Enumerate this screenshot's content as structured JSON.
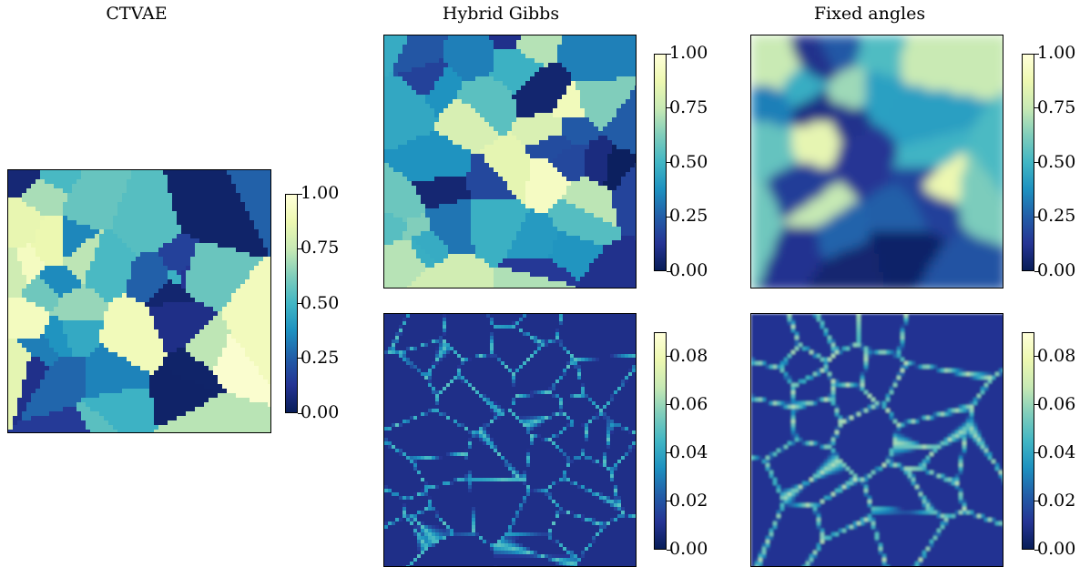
{
  "colormap": [
    "#081d58",
    "#253494",
    "#225ea8",
    "#1d91c0",
    "#41b6c4",
    "#7fcdbb",
    "#c7e9b4",
    "#edf8b1",
    "#ffffd9"
  ],
  "chart_data": [
    {
      "id": "ctvae",
      "type": "heatmap",
      "title": "CTVAE",
      "colorbar": {
        "range": [
          0,
          1
        ],
        "ticks": [
          "0.00",
          "0.25",
          "0.50",
          "0.75",
          "1.00"
        ]
      },
      "pattern": "piecewise-constant grain map",
      "grid_on": false
    },
    {
      "id": "hybrid-gibbs-orientation",
      "type": "heatmap",
      "title": "Hybrid Gibbs",
      "colorbar": {
        "range": [
          0,
          1
        ],
        "ticks": [
          "0.00",
          "0.25",
          "0.50",
          "0.75",
          "1.00"
        ]
      },
      "pattern": "piecewise-constant grain map",
      "grid_on": false
    },
    {
      "id": "fixed-angles-orientation",
      "type": "heatmap",
      "title": "Fixed angles",
      "colorbar": {
        "range": [
          0,
          1
        ],
        "ticks": [
          "0.00",
          "0.25",
          "0.50",
          "0.75",
          "1.00"
        ]
      },
      "pattern": "smooth blurred grain map",
      "grid_on": false
    },
    {
      "id": "hybrid-gibbs-std",
      "type": "heatmap",
      "title": "",
      "colorbar": {
        "range": [
          0,
          0.09
        ],
        "ticks": [
          "0.00",
          "0.02",
          "0.04",
          "0.06",
          "0.08"
        ]
      },
      "pattern": "low background with bright grain-boundary lines",
      "grid_on": false
    },
    {
      "id": "fixed-angles-std",
      "type": "heatmap",
      "title": "",
      "colorbar": {
        "range": [
          0,
          0.09
        ],
        "ticks": [
          "0.00",
          "0.02",
          "0.04",
          "0.06",
          "0.08"
        ]
      },
      "pattern": "low background with bright smooth boundary lines",
      "grid_on": false
    }
  ]
}
